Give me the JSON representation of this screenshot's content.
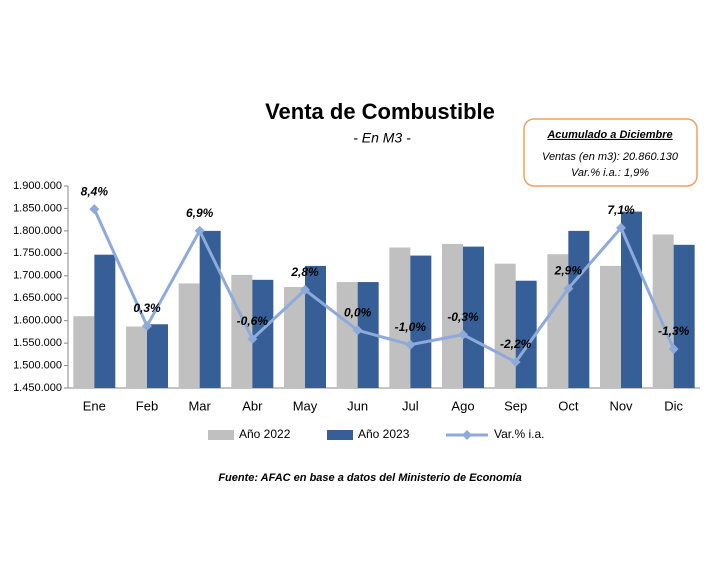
{
  "chart_data": {
    "type": "bar-line",
    "title": "Venta de Combustible",
    "subtitle": "- En M3 -",
    "annotations": [
      "Acumulado a Diciembre",
      "Ventas (en m3):  20.860.130",
      "Var.% i.a.: 1,9%"
    ],
    "source": "Fuente: AFAC en base a datos del Ministerio de Economía",
    "categories": [
      "Ene",
      "Feb",
      "Mar",
      "Abr",
      "May",
      "Jun",
      "Jul",
      "Ago",
      "Sep",
      "Oct",
      "Nov",
      "Dic"
    ],
    "series": [
      {
        "name": "Año 2022",
        "type": "bar",
        "color": "#c0c0c0",
        "values": [
          1610000,
          1587000,
          1683000,
          1702000,
          1675000,
          1686000,
          1763000,
          1771000,
          1727000,
          1748000,
          1722000,
          1792000
        ]
      },
      {
        "name": "Año 2023",
        "type": "bar",
        "color": "#355f96",
        "values": [
          1747000,
          1592000,
          1800000,
          1691000,
          1722000,
          1686000,
          1745000,
          1765000,
          1689000,
          1800000,
          1843000,
          1769000
        ]
      },
      {
        "name": "Var.% i.a.",
        "type": "line",
        "axis": "y2",
        "color": "#8eaadb",
        "values": [
          8.4,
          0.3,
          6.9,
          -0.6,
          2.8,
          0.0,
          -1.0,
          -0.3,
          -2.2,
          2.9,
          7.1,
          -1.3
        ],
        "value_labels": [
          "8,4%",
          "0,3%",
          "6,9%",
          "-0,6%",
          "2,8%",
          "0,0%",
          "-1,0%",
          "-0,3%",
          "-2,2%",
          "2,9%",
          "7,1%",
          "-1,3%"
        ]
      }
    ],
    "ylim": [
      1450000,
      1900000
    ],
    "yticks": [
      {
        "value": 1450000,
        "label": "1.450.000"
      },
      {
        "value": 1500000,
        "label": "1.500.000"
      },
      {
        "value": 1550000,
        "label": "1.550.000"
      },
      {
        "value": 1600000,
        "label": "1.600.000"
      },
      {
        "value": 1650000,
        "label": "1.650.000"
      },
      {
        "value": 1700000,
        "label": "1.700.000"
      },
      {
        "value": 1750000,
        "label": "1.750.000"
      },
      {
        "value": 1800000,
        "label": "1.800.000"
      },
      {
        "value": 1850000,
        "label": "1.850.000"
      },
      {
        "value": 1900000,
        "label": "1.900.000"
      }
    ],
    "y2lim": [
      -4,
      10
    ],
    "grid": false
  }
}
